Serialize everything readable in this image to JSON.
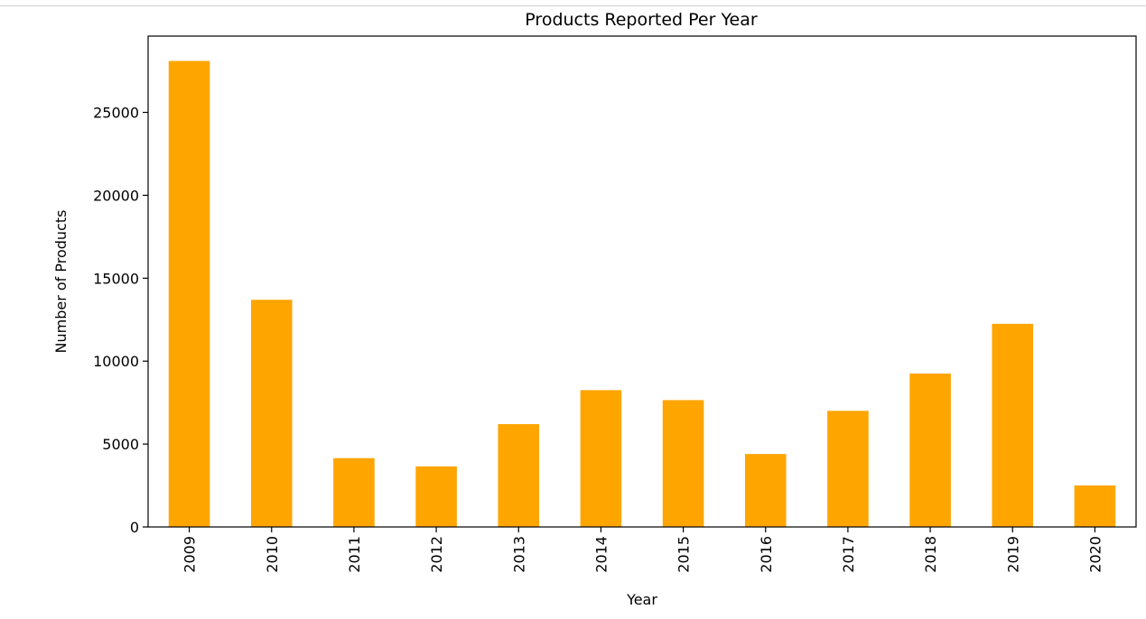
{
  "chart_data": {
    "type": "bar",
    "title": "Products Reported Per Year",
    "xlabel": "Year",
    "ylabel": "Number of Products",
    "categories": [
      "2009",
      "2010",
      "2011",
      "2012",
      "2013",
      "2014",
      "2015",
      "2016",
      "2017",
      "2018",
      "2019",
      "2020"
    ],
    "values": [
      28100,
      13700,
      4150,
      3650,
      6200,
      8250,
      7650,
      4400,
      7000,
      9250,
      12250,
      2500
    ],
    "ylim": [
      0,
      29600
    ],
    "yticks": [
      0,
      5000,
      10000,
      15000,
      20000,
      25000
    ],
    "bar_color": "#FFA500",
    "grid": false,
    "legend": "none"
  }
}
